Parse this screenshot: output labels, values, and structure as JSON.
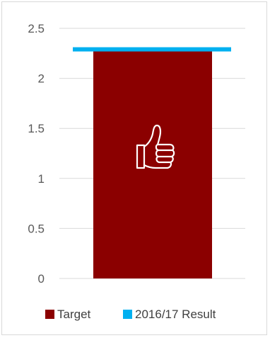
{
  "chart_data": {
    "type": "bar",
    "categories": [
      ""
    ],
    "ylim": [
      0,
      2.5
    ],
    "yticks": [
      "0",
      "0.5",
      "1",
      "1.5",
      "2",
      "2.5"
    ],
    "ytick_values": [
      0,
      0.5,
      1,
      1.5,
      2,
      2.5
    ],
    "grid": true,
    "legend_position": "bottom",
    "series": [
      {
        "name": "Target",
        "type": "bar",
        "values": [
          2.27
        ],
        "color": "#8B0000"
      },
      {
        "name": "2016/17 Result",
        "type": "line",
        "values": [
          2.29
        ],
        "color": "#00B0F0"
      }
    ],
    "annotation_icon": "thumbs-up-icon"
  }
}
